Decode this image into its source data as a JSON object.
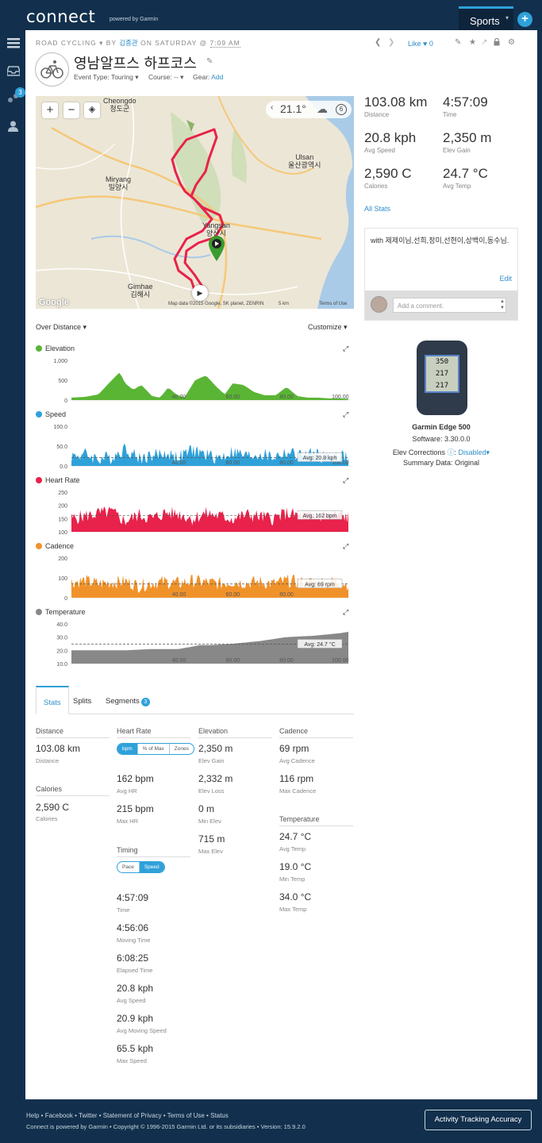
{
  "app": {
    "logo": "connect",
    "logo_sub": "powered by Garmin",
    "sports_tab": "Sports",
    "notification_count": "3"
  },
  "activity": {
    "type": "ROAD CYCLING",
    "by": "BY",
    "user": "김종관",
    "on": "ON SATURDAY @",
    "time": "7:09 AM",
    "title": "영남알프스 하프코스",
    "event_type_label": "Event Type:",
    "event_type": "Touring",
    "course_label": "Course:",
    "course": "--",
    "gear_label": "Gear:",
    "gear_action": "Add",
    "like_label": "Like",
    "like_count": "0"
  },
  "map": {
    "temperature": "21.1°",
    "wind": "6",
    "labels": [
      {
        "text": "Cheongdo\n청도군"
      },
      {
        "text": "Miryang\n밀양시"
      },
      {
        "text": "Ulsan\n울산광역시"
      },
      {
        "text": "Yangsan\n양산시"
      },
      {
        "text": "Gimhae\n김해시"
      }
    ],
    "attribution": "Map data ©2015 Google, SK planet, ZENRIN",
    "scale": "5 km",
    "terms": "Terms of Use",
    "google": "Google"
  },
  "summary_stats": [
    {
      "value": "103.08 km",
      "label": "Distance"
    },
    {
      "value": "4:57:09",
      "label": "Time"
    },
    {
      "value": "20.8 kph",
      "label": "Avg Speed"
    },
    {
      "value": "2,350 m",
      "label": "Elev Gain"
    },
    {
      "value": "2,590 C",
      "label": "Calories"
    },
    {
      "value": "24.7 °C",
      "label": "Avg Temp"
    }
  ],
  "all_stats_link": "All Stats",
  "note": {
    "text": "with 제제이님,선희,정미,선현이,상백이,동수님.",
    "edit": "Edit",
    "comment_placeholder": "Add a comment."
  },
  "device": {
    "screen_lines": [
      "350",
      "217",
      "217"
    ],
    "name": "Garmin Edge 500",
    "software_label": "Software:",
    "software": "3.30.0.0",
    "elev_label": "Elev Corrections",
    "elev_value": "Disabled",
    "summary_label": "Summary Data:",
    "summary_value": "Original"
  },
  "chart_controls": {
    "over_distance": "Over Distance",
    "customize": "Customize"
  },
  "chart_data": [
    {
      "type": "area",
      "title": "Elevation",
      "color": "#5ab535",
      "ylim": [
        0,
        1000
      ],
      "yticks": [
        "1,000",
        "500",
        "0"
      ],
      "xticks": [
        "40.00",
        "60.00",
        "80.00",
        "100.00"
      ],
      "x": [
        0,
        5,
        10,
        15,
        18,
        20,
        23,
        26,
        30,
        33,
        36,
        39,
        42,
        46,
        50,
        54,
        57,
        60,
        64,
        68,
        72,
        76,
        80,
        84,
        88,
        92,
        96,
        100,
        103
      ],
      "y": [
        60,
        80,
        140,
        500,
        700,
        420,
        260,
        380,
        100,
        60,
        320,
        140,
        60,
        500,
        620,
        330,
        140,
        420,
        380,
        200,
        120,
        120,
        330,
        100,
        60,
        60,
        40,
        40,
        30
      ],
      "avg": null
    },
    {
      "type": "area",
      "title": "Speed",
      "color": "#2fa1d9",
      "ylim": [
        0,
        100
      ],
      "yticks": [
        "100.0",
        "50.0",
        "0.0"
      ],
      "xticks": [
        "40.00",
        "60.00",
        "80.00",
        "100.00"
      ],
      "x": [
        0,
        5,
        10,
        15,
        20,
        25,
        30,
        35,
        40,
        45,
        50,
        55,
        60,
        65,
        70,
        75,
        80,
        85,
        90,
        95,
        100,
        103
      ],
      "y": [
        25,
        30,
        18,
        22,
        45,
        20,
        26,
        32,
        22,
        40,
        28,
        20,
        36,
        24,
        30,
        22,
        34,
        26,
        30,
        20,
        28,
        18
      ],
      "avg": 20.8,
      "avg_label": "Avg: 20.8 kph"
    },
    {
      "type": "area",
      "title": "Heart Rate",
      "color": "#e8224a",
      "ylim": [
        100,
        250
      ],
      "yticks": [
        "250",
        "200",
        "150",
        "100"
      ],
      "xticks": [],
      "x": [
        0,
        5,
        10,
        15,
        20,
        25,
        30,
        35,
        40,
        45,
        50,
        55,
        60,
        65,
        70,
        75,
        80,
        85,
        90,
        95,
        100,
        103
      ],
      "y": [
        150,
        160,
        170,
        175,
        140,
        165,
        150,
        172,
        168,
        150,
        170,
        160,
        150,
        165,
        158,
        150,
        170,
        160,
        155,
        165,
        160,
        155
      ],
      "avg": 162,
      "avg_label": "Avg: 162 bpm"
    },
    {
      "type": "area",
      "title": "Cadence",
      "color": "#f0922a",
      "ylim": [
        0,
        200
      ],
      "yticks": [
        "200",
        "100",
        "0"
      ],
      "xticks": [
        "40.00",
        "60.00",
        "80.00"
      ],
      "x": [
        0,
        5,
        10,
        15,
        20,
        25,
        30,
        35,
        40,
        45,
        50,
        55,
        60,
        65,
        70,
        75,
        80,
        85,
        90,
        95,
        100,
        103
      ],
      "y": [
        80,
        85,
        70,
        78,
        82,
        60,
        75,
        80,
        72,
        85,
        78,
        70,
        82,
        75,
        80,
        70,
        85,
        78,
        75,
        80,
        76,
        70
      ],
      "avg": 69,
      "avg_label": "Avg: 69 rpm"
    },
    {
      "type": "area",
      "title": "Temperature",
      "color": "#888888",
      "ylim": [
        10,
        40
      ],
      "yticks": [
        "40.0",
        "30.0",
        "20.0",
        "10.0"
      ],
      "xticks": [
        "40.00",
        "60.00",
        "80.00",
        "100.00"
      ],
      "x": [
        0,
        10,
        20,
        30,
        40,
        48,
        52,
        60,
        70,
        80,
        90,
        100,
        103
      ],
      "y": [
        20,
        20,
        20,
        21,
        21,
        24,
        24,
        25,
        27,
        30,
        31,
        33,
        34
      ],
      "avg": 24.7,
      "avg_label": "Avg: 24.7 °C"
    }
  ],
  "tabs": [
    {
      "label": "Stats"
    },
    {
      "label": "Splits"
    },
    {
      "label": "Segments",
      "badge": "3"
    }
  ],
  "stats_detail": {
    "distance": {
      "title": "Distance",
      "value": "103.08 km",
      "label": "Distance"
    },
    "calories": {
      "title": "Calories",
      "value": "2,590 C",
      "label": "Calories"
    },
    "heart_rate": {
      "title": "Heart Rate",
      "toggle": [
        "bpm",
        "% of Max",
        "Zones"
      ],
      "items": [
        {
          "value": "162 bpm",
          "label": "Avg HR"
        },
        {
          "value": "215 bpm",
          "label": "Max HR"
        }
      ]
    },
    "timing": {
      "title": "Timing",
      "toggle": [
        "Pace",
        "Speed"
      ],
      "items": [
        {
          "value": "4:57:09",
          "label": "Time"
        },
        {
          "value": "4:56:06",
          "label": "Moving Time"
        },
        {
          "value": "6:08:25",
          "label": "Elapsed Time"
        },
        {
          "value": "20.8 kph",
          "label": "Avg Speed"
        },
        {
          "value": "20.9 kph",
          "label": "Avg Moving Speed"
        },
        {
          "value": "65.5 kph",
          "label": "Max Speed"
        }
      ]
    },
    "elevation": {
      "title": "Elevation",
      "items": [
        {
          "value": "2,350 m",
          "label": "Elev Gain"
        },
        {
          "value": "2,332 m",
          "label": "Elev Loss"
        },
        {
          "value": "0 m",
          "label": "Min Elev"
        },
        {
          "value": "715 m",
          "label": "Max Elev"
        }
      ]
    },
    "cadence": {
      "title": "Cadence",
      "items": [
        {
          "value": "69 rpm",
          "label": "Avg Cadence"
        },
        {
          "value": "116 rpm",
          "label": "Max Cadence"
        }
      ]
    },
    "temperature": {
      "title": "Temperature",
      "items": [
        {
          "value": "24.7 °C",
          "label": "Avg Temp"
        },
        {
          "value": "19.0 °C",
          "label": "Min Temp"
        },
        {
          "value": "34.0 °C",
          "label": "Max Temp"
        }
      ]
    }
  },
  "footer": {
    "links": [
      "Help",
      "Facebook",
      "Twitter",
      "Statement of Privacy",
      "Terms of Use",
      "Status"
    ],
    "copyright": "Connect is powered by Garmin • Copyright © 1996-2015 Garmin Ltd. or its subsidiaries • Version: 15.9.2.0",
    "tracking_button": "Activity Tracking Accuracy"
  }
}
